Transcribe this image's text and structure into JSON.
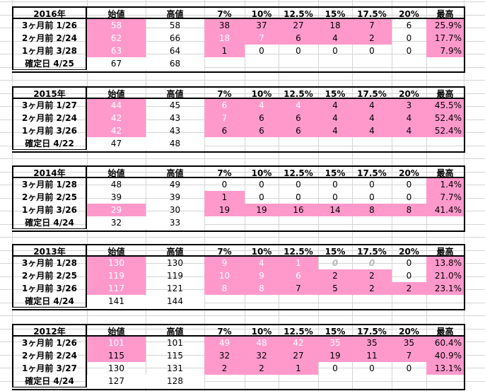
{
  "columns": [
    "始値",
    "高値",
    "7%",
    "10%",
    "12.5%",
    "15%",
    "17.5%",
    "20%",
    "最高"
  ],
  "tables": [
    {
      "year": "2016年",
      "rows": [
        {
          "label": "3ヶ月前 1/26",
          "cells": [
            "58",
            "58",
            "38",
            "37",
            "27",
            "18",
            "7",
            "6",
            "25.9%"
          ],
          "styles": [
            "pw",
            "",
            "p",
            "p",
            "p",
            "p",
            "p",
            "",
            "p"
          ]
        },
        {
          "label": "2ヶ月前 2/24",
          "cells": [
            "62",
            "66",
            "18",
            "7",
            "6",
            "4",
            "2",
            "0",
            "17.7%"
          ],
          "styles": [
            "pw",
            "",
            "pw",
            "pw",
            "p",
            "p",
            "p",
            "",
            "p"
          ]
        },
        {
          "label": "1ヶ月前 3/28",
          "cells": [
            "63",
            "64",
            "1",
            "0",
            "0",
            "0",
            "0",
            "0",
            "7.9%"
          ],
          "styles": [
            "pw",
            "",
            "p",
            "",
            "",
            "",
            "",
            "",
            "p"
          ]
        }
      ],
      "confirm": {
        "label": "確定日 4/25",
        "cells": [
          "67",
          "68"
        ]
      }
    },
    {
      "year": "2015年",
      "rows": [
        {
          "label": "3ヶ月前 1/27",
          "cells": [
            "44",
            "45",
            "6",
            "4",
            "4",
            "4",
            "4",
            "3",
            "45.5%"
          ],
          "styles": [
            "pw",
            "",
            "pw",
            "pw",
            "pw",
            "p",
            "p",
            "p",
            "p"
          ]
        },
        {
          "label": "2ヶ月前 2/24",
          "cells": [
            "42",
            "43",
            "7",
            "6",
            "6",
            "4",
            "4",
            "4",
            "52.4%"
          ],
          "styles": [
            "pw",
            "",
            "pw",
            "p",
            "p",
            "p",
            "p",
            "p",
            "p"
          ]
        },
        {
          "label": "1ヶ月前 3/26",
          "cells": [
            "42",
            "43",
            "6",
            "6",
            "6",
            "4",
            "4",
            "4",
            "52.4%"
          ],
          "styles": [
            "pw",
            "",
            "p",
            "p",
            "p",
            "p",
            "p",
            "p",
            "p"
          ]
        }
      ],
      "confirm": {
        "label": "確定日 4/22",
        "cells": [
          "47",
          "48"
        ]
      }
    },
    {
      "year": "2014年",
      "rows": [
        {
          "label": "3ヶ月前 1/28",
          "cells": [
            "48",
            "49",
            "0",
            "0",
            "0",
            "0",
            "0",
            "0",
            "1.4%"
          ],
          "styles": [
            "",
            "",
            "",
            "",
            "",
            "",
            "",
            "",
            "p"
          ]
        },
        {
          "label": "2ヶ月前 2/25",
          "cells": [
            "39",
            "39",
            "1",
            "0",
            "0",
            "0",
            "0",
            "0",
            "7.7%"
          ],
          "styles": [
            "",
            "",
            "p",
            "",
            "",
            "",
            "",
            "",
            "p"
          ]
        },
        {
          "label": "1ヶ月前 3/26",
          "cells": [
            "29",
            "30",
            "19",
            "19",
            "16",
            "14",
            "8",
            "8",
            "41.4%"
          ],
          "styles": [
            "pw",
            "",
            "p",
            "p",
            "p",
            "p",
            "p",
            "p",
            "p"
          ]
        }
      ],
      "confirm": {
        "label": "確定日 4/24",
        "cells": [
          "32",
          "33"
        ]
      }
    },
    {
      "year": "2013年",
      "rows": [
        {
          "label": "3ヶ月前 1/28",
          "cells": [
            "130",
            "130",
            "9",
            "4",
            "1",
            "0",
            "0",
            "0",
            "13.8%"
          ],
          "styles": [
            "pw",
            "",
            "pw",
            "pw",
            "pw",
            "g",
            "g",
            "",
            "p"
          ]
        },
        {
          "label": "2ヶ月前 2/25",
          "cells": [
            "119",
            "119",
            "10",
            "9",
            "6",
            "2",
            "2",
            "0",
            "21.0%"
          ],
          "styles": [
            "pw",
            "",
            "pw",
            "pw",
            "pw",
            "p",
            "p",
            "",
            "p"
          ]
        },
        {
          "label": "1ヶ月前 3/26",
          "cells": [
            "117",
            "121",
            "8",
            "8",
            "7",
            "5",
            "2",
            "2",
            "23.1%"
          ],
          "styles": [
            "pw",
            "",
            "pw",
            "pw",
            "p",
            "p",
            "p",
            "p",
            "p"
          ]
        }
      ],
      "confirm": {
        "label": "確定日 4/24",
        "cells": [
          "141",
          "144"
        ]
      }
    },
    {
      "year": "2012年",
      "rows": [
        {
          "label": "3ヶ月前 1/26",
          "cells": [
            "101",
            "101",
            "49",
            "48",
            "42",
            "35",
            "35",
            "35",
            "60.4%"
          ],
          "styles": [
            "pw",
            "",
            "pw",
            "pw",
            "pw",
            "pw",
            "p",
            "p",
            "p"
          ]
        },
        {
          "label": "2ヶ月前 2/24",
          "cells": [
            "115",
            "115",
            "32",
            "32",
            "27",
            "19",
            "11",
            "7",
            "40.9%"
          ],
          "styles": [
            "p",
            "",
            "p",
            "p",
            "p",
            "p",
            "p",
            "p",
            "p"
          ]
        },
        {
          "label": "1ヶ月前 3/27",
          "cells": [
            "130",
            "131",
            "2",
            "2",
            "1",
            "0",
            "0",
            "0",
            "13.1%"
          ],
          "styles": [
            "",
            "",
            "p",
            "p",
            "p",
            "",
            "",
            "",
            "p"
          ]
        }
      ],
      "confirm": {
        "label": "確定日 4/24",
        "cells": [
          "127",
          "128"
        ]
      }
    }
  ]
}
